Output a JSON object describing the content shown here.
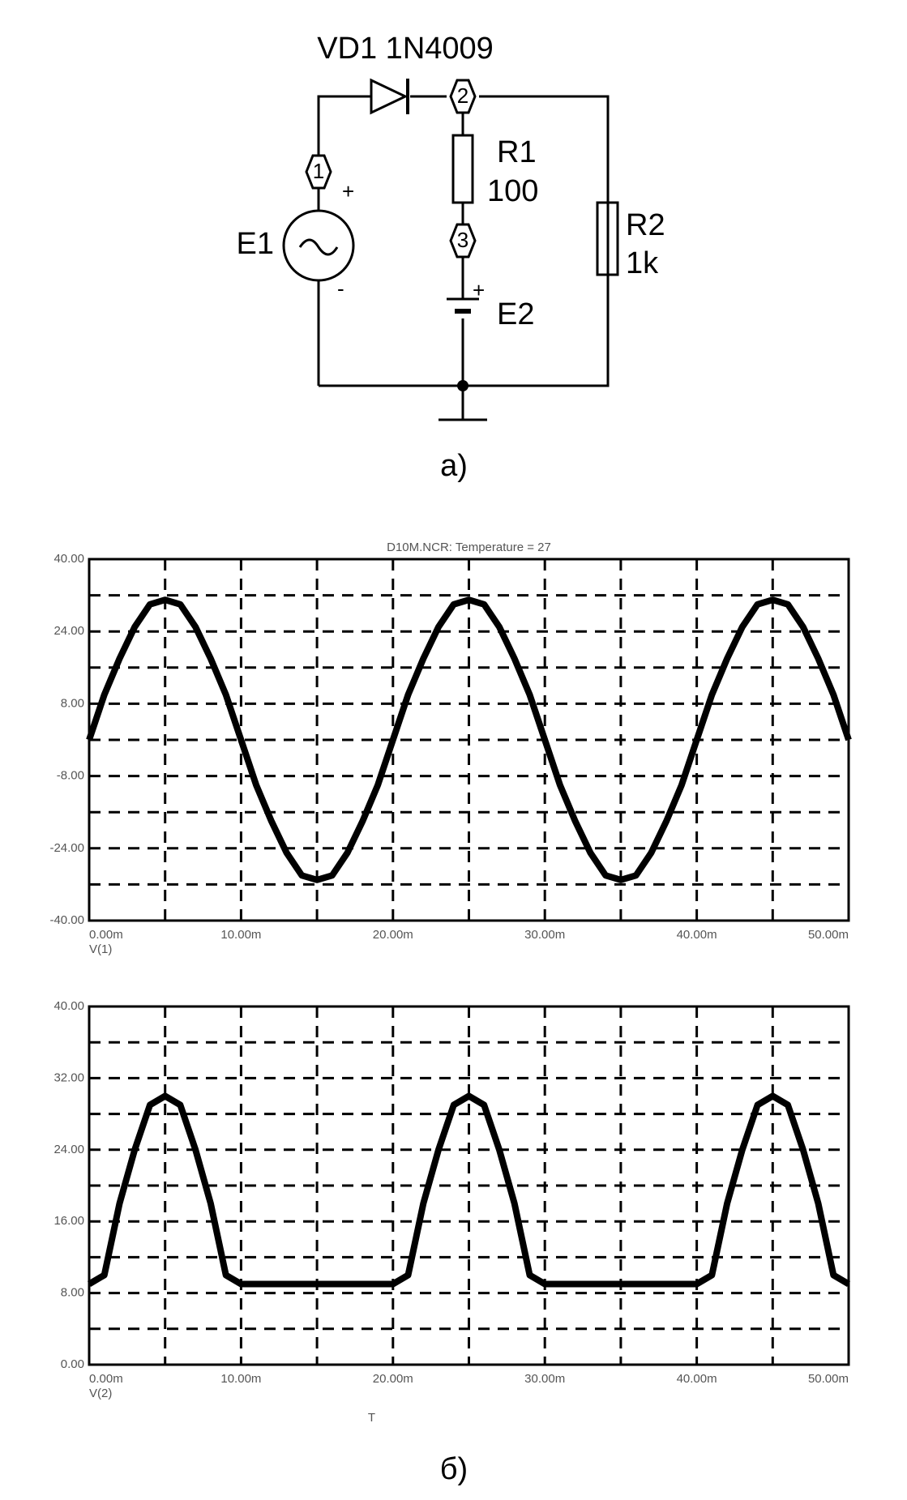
{
  "diagram": {
    "diode_label": "VD1 1N4009",
    "node_1": "1",
    "node_2": "2",
    "node_3": "3",
    "e1_label": "E1",
    "e1_plus": "+",
    "e1_minus": "-",
    "r1_name": "R1",
    "r1_value": "100",
    "r2_name": "R2",
    "r2_value": "1k",
    "e2_label": "E2",
    "e2_plus": "+",
    "caption": "a)"
  },
  "chart_data": [
    {
      "type": "line",
      "title": "D10M.NCR: Temperature = 27",
      "trace_label": "V(1)",
      "color": "#000000",
      "grid": true,
      "x": [
        0,
        1,
        2,
        3,
        4,
        5,
        6,
        7,
        8,
        9,
        10,
        11,
        12,
        13,
        14,
        15,
        16,
        17,
        18,
        19,
        20,
        21,
        22,
        23,
        24,
        25,
        26,
        27,
        28,
        29,
        30,
        31,
        32,
        33,
        34,
        35,
        36,
        37,
        38,
        39,
        40,
        41,
        42,
        43,
        44,
        45,
        46,
        47,
        48,
        49,
        50
      ],
      "values": [
        0,
        10,
        18,
        25,
        30,
        31,
        30,
        25,
        18,
        10,
        0,
        -10,
        -18,
        -25,
        -30,
        -31,
        -30,
        -25,
        -18,
        -10,
        0,
        10,
        18,
        25,
        30,
        31,
        30,
        25,
        18,
        10,
        0,
        -10,
        -18,
        -25,
        -30,
        -31,
        -30,
        -25,
        -18,
        -10,
        0,
        10,
        18,
        25,
        30,
        31,
        30,
        25,
        18,
        10,
        0
      ],
      "xlim": [
        0,
        50
      ],
      "xticks": [
        {
          "value": 0,
          "label": "0.00m"
        },
        {
          "value": 10,
          "label": "10.00m"
        },
        {
          "value": 20,
          "label": "20.00m"
        },
        {
          "value": 30,
          "label": "30.00m"
        },
        {
          "value": 40,
          "label": "40.00m"
        },
        {
          "value": 50,
          "label": "50.00m"
        }
      ],
      "minor_xticks": [
        5,
        15,
        25,
        35,
        45
      ],
      "ylim": [
        -40,
        40
      ],
      "yticks": [
        {
          "value": 40,
          "label": "40.00"
        },
        {
          "value": 24,
          "label": "24.00"
        },
        {
          "value": 8,
          "label": "8.00"
        },
        {
          "value": -8,
          "label": "-8.00"
        },
        {
          "value": -24,
          "label": "-24.00"
        },
        {
          "value": -40,
          "label": "-40.00"
        }
      ],
      "minor_yticks": [
        32,
        16,
        0,
        -16,
        -32
      ]
    },
    {
      "type": "line",
      "trace_label": "V(2)",
      "xlabel": "T",
      "color": "#000000",
      "grid": true,
      "x": [
        0,
        1,
        2,
        3,
        4,
        5,
        6,
        7,
        8,
        9,
        10,
        11,
        12,
        13,
        14,
        15,
        16,
        17,
        18,
        19,
        20,
        21,
        22,
        23,
        24,
        25,
        26,
        27,
        28,
        29,
        30,
        31,
        32,
        33,
        34,
        35,
        36,
        37,
        38,
        39,
        40,
        41,
        42,
        43,
        44,
        45,
        46,
        47,
        48,
        49,
        50
      ],
      "values": [
        9,
        10,
        18,
        24,
        29,
        30,
        29,
        24,
        18,
        10,
        9,
        9,
        9,
        9,
        9,
        9,
        9,
        9,
        9,
        9,
        9,
        10,
        18,
        24,
        29,
        30,
        29,
        24,
        18,
        10,
        9,
        9,
        9,
        9,
        9,
        9,
        9,
        9,
        9,
        9,
        9,
        10,
        18,
        24,
        29,
        30,
        29,
        24,
        18,
        10,
        9
      ],
      "xlim": [
        0,
        50
      ],
      "xticks": [
        {
          "value": 0,
          "label": "0.00m"
        },
        {
          "value": 10,
          "label": "10.00m"
        },
        {
          "value": 20,
          "label": "20.00m"
        },
        {
          "value": 30,
          "label": "30.00m"
        },
        {
          "value": 40,
          "label": "40.00m"
        },
        {
          "value": 50,
          "label": "50.00m"
        }
      ],
      "minor_xticks": [
        5,
        15,
        25,
        35,
        45
      ],
      "ylim": [
        0,
        40
      ],
      "yticks": [
        {
          "value": 40,
          "label": "40.00"
        },
        {
          "value": 32,
          "label": "32.00"
        },
        {
          "value": 24,
          "label": "24.00"
        },
        {
          "value": 16,
          "label": "16.00"
        },
        {
          "value": 8,
          "label": "8.00"
        },
        {
          "value": 0,
          "label": "0.00"
        }
      ],
      "minor_yticks": [
        36,
        28,
        20,
        12,
        4
      ]
    }
  ],
  "caption_b": "б)"
}
